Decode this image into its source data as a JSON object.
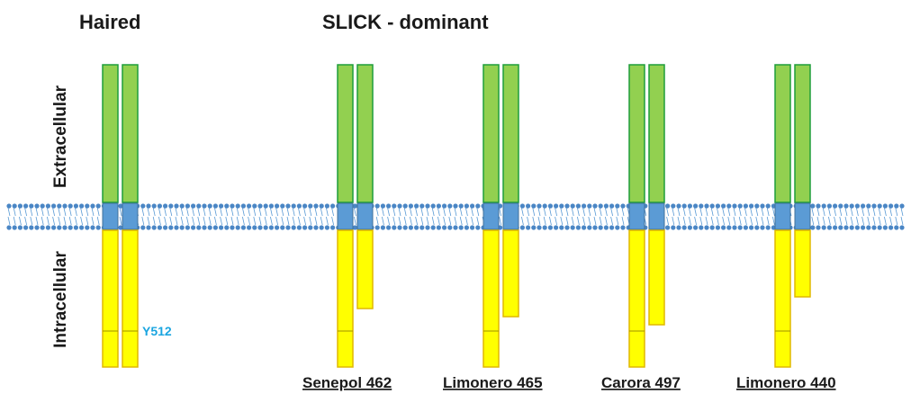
{
  "titles": {
    "left": "Haired",
    "right": "SLICK - dominant"
  },
  "regions": {
    "extracellular": "Extracellular",
    "intracellular": "Intracellular"
  },
  "site_label": "Y512",
  "variants": [
    "Senepol 462",
    "Limonero 465",
    "Carora 497",
    "Limonero 440"
  ]
}
